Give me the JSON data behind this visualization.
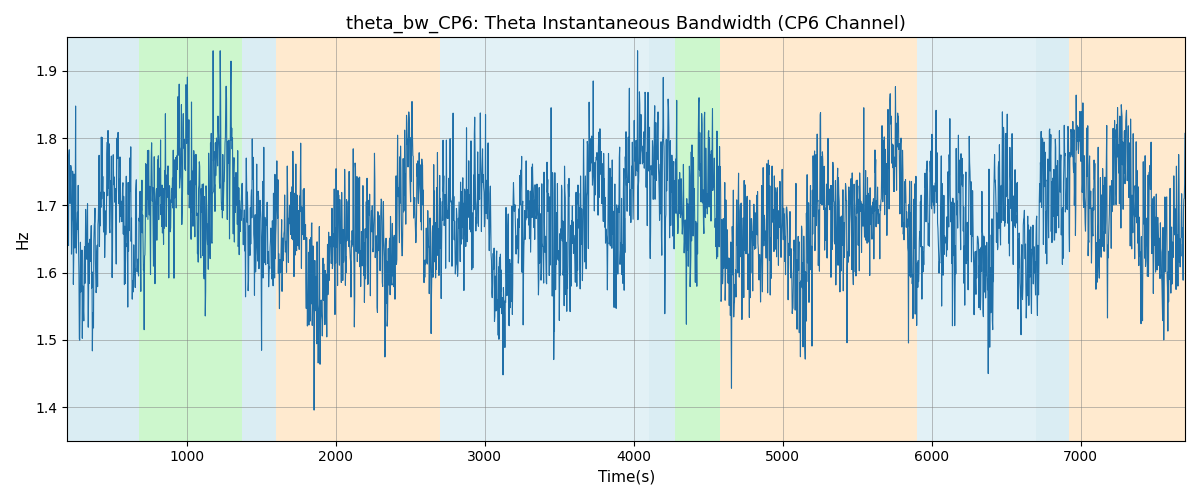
{
  "title": "theta_bw_CP6: Theta Instantaneous Bandwidth (CP6 Channel)",
  "xlabel": "Time(s)",
  "ylabel": "Hz",
  "xlim": [
    200,
    7700
  ],
  "ylim": [
    1.35,
    1.95
  ],
  "yticks": [
    1.4,
    1.5,
    1.6,
    1.7,
    1.8,
    1.9
  ],
  "xticks": [
    1000,
    2000,
    3000,
    4000,
    5000,
    6000,
    7000
  ],
  "line_color": "#1f6fa8",
  "line_width": 0.8,
  "bg_color": "#ffffff",
  "colored_bands": [
    {
      "xmin": 200,
      "xmax": 680,
      "color": "#add8e6",
      "alpha": 0.45
    },
    {
      "xmin": 680,
      "xmax": 1370,
      "color": "#90ee90",
      "alpha": 0.45
    },
    {
      "xmin": 1370,
      "xmax": 1600,
      "color": "#add8e6",
      "alpha": 0.45
    },
    {
      "xmin": 1600,
      "xmax": 2700,
      "color": "#ffd7a0",
      "alpha": 0.5
    },
    {
      "xmin": 2700,
      "xmax": 4100,
      "color": "#add8e6",
      "alpha": 0.35
    },
    {
      "xmin": 4100,
      "xmax": 4280,
      "color": "#add8e6",
      "alpha": 0.45
    },
    {
      "xmin": 4280,
      "xmax": 4580,
      "color": "#90ee90",
      "alpha": 0.45
    },
    {
      "xmin": 4580,
      "xmax": 5900,
      "color": "#ffd7a0",
      "alpha": 0.5
    },
    {
      "xmin": 5900,
      "xmax": 6700,
      "color": "#add8e6",
      "alpha": 0.35
    },
    {
      "xmin": 6700,
      "xmax": 6920,
      "color": "#add8e6",
      "alpha": 0.45
    },
    {
      "xmin": 6920,
      "xmax": 7700,
      "color": "#ffd7a0",
      "alpha": 0.5
    }
  ],
  "seed": 12345,
  "n_points": 3000,
  "time_start": 200,
  "time_end": 7700
}
